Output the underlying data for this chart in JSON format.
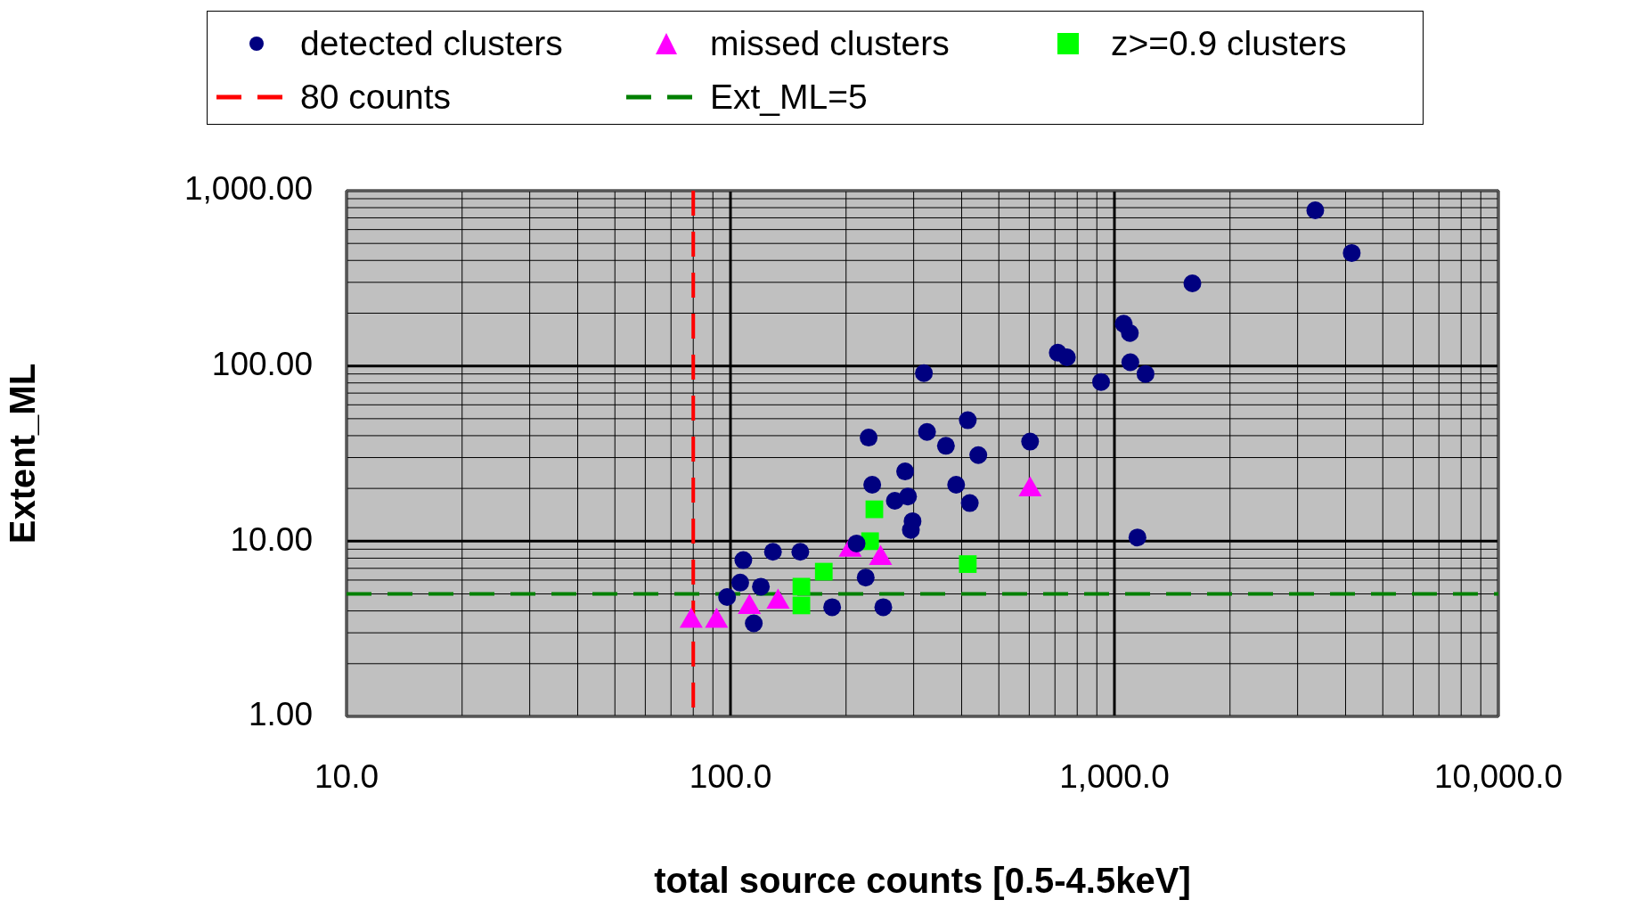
{
  "chart_data": {
    "type": "scatter",
    "xlabel": "total source counts [0.5-4.5keV]",
    "ylabel": "Extent_ML",
    "log": "xy",
    "grid": true,
    "legend": "top",
    "xlim": [
      10,
      10000
    ],
    "xticks": [
      {
        "value": 10,
        "label": "10.0"
      },
      {
        "value": 100,
        "label": "100.0"
      },
      {
        "value": 1000,
        "label": "1,000.0"
      },
      {
        "value": 10000,
        "label": "10,000.0"
      }
    ],
    "ylim": [
      1,
      1000
    ],
    "yticks": [
      {
        "value": 1,
        "label": "1.00"
      },
      {
        "value": 10,
        "label": "10.00"
      },
      {
        "value": 100,
        "label": "100.00"
      },
      {
        "value": 1000,
        "label": "1,000.00"
      }
    ],
    "series": [
      {
        "name": "detected clusters",
        "color": "#000080",
        "marker": "circle",
        "x": [
          3335,
          4150,
          1596,
          712,
          752,
          1057,
          1097,
          1100,
          1205,
          923,
          319,
          325,
          364,
          415,
          442,
          603,
          229,
          234,
          387,
          285,
          290,
          268,
          420,
          298,
          295,
          1148,
          108,
          129,
          152,
          106,
          120,
          98,
          115,
          184,
          250,
          225,
          213
        ],
        "values": [
          773,
          441,
          296,
          119,
          112,
          174,
          154,
          105,
          90,
          81,
          91,
          42,
          35,
          49,
          31,
          37,
          39,
          21,
          21,
          25,
          18,
          17,
          16.5,
          13,
          11.6,
          10.5,
          7.8,
          8.7,
          8.7,
          5.8,
          5.5,
          4.8,
          3.4,
          4.2,
          4.2,
          6.2,
          9.7
        ]
      },
      {
        "name": "missed clusters",
        "color": "#ff00ff",
        "marker": "triangle",
        "x": [
          79,
          92,
          112,
          133,
          205,
          246,
          603
        ],
        "values": [
          3.5,
          3.5,
          4.2,
          4.5,
          8.9,
          8.0,
          19.7
        ]
      },
      {
        "name": "z>=0.9 clusters",
        "color": "#00ff00",
        "marker": "square",
        "x": [
          237,
          231,
          175,
          153,
          153,
          415
        ],
        "values": [
          15.2,
          10,
          6.7,
          5.5,
          4.3,
          7.4
        ]
      }
    ],
    "ref_lines": [
      {
        "axis": "x",
        "value": 80,
        "label": "80 counts",
        "color": "#ff0000",
        "line_style": "dashed"
      },
      {
        "axis": "y",
        "value": 5,
        "label": "Ext_ML=5",
        "color": "#008000",
        "line_style": "dashed"
      }
    ]
  }
}
